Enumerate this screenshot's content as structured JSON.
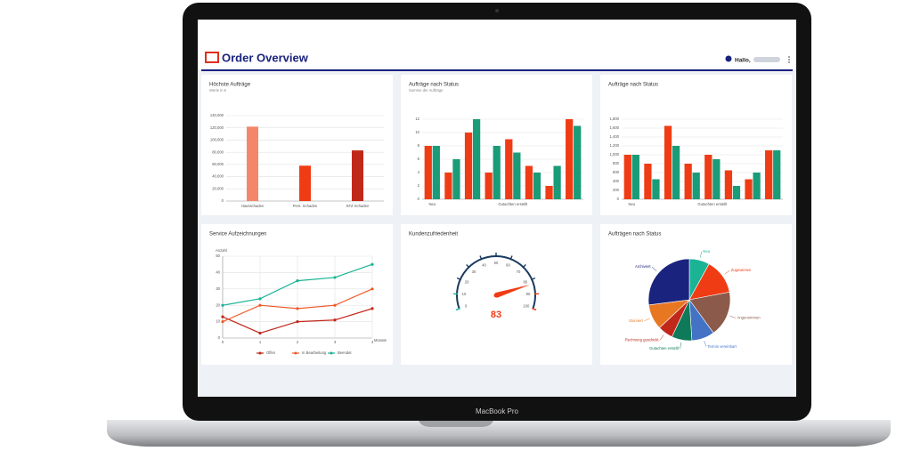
{
  "header": {
    "title": "Order Overview",
    "greeting": "Hallo,"
  },
  "device": {
    "label": "MacBook Pro"
  },
  "chart_data": [
    {
      "type": "bar",
      "title": "Höchste Aufträge",
      "subtitle": "Werte in €",
      "categories": [
        "Hausschaden",
        "Pers. Schaden",
        "KFZ Schaden"
      ],
      "values": [
        122000,
        58000,
        83000
      ],
      "colors": [
        "#f4876a",
        "#f03c14",
        "#c0281a"
      ],
      "ylim": [
        0,
        140000
      ],
      "yticks": [
        0,
        {
          "value": 20000,
          "label": "20,000"
        },
        {
          "value": 40000,
          "label": "40,000"
        },
        {
          "value": 60000,
          "label": "60,000"
        },
        {
          "value": 80000,
          "label": "80,000"
        },
        {
          "value": 100000,
          "label": "100,000"
        },
        {
          "value": 120000,
          "label": "120,000"
        },
        {
          "value": 140000,
          "label": "140,000"
        }
      ],
      "grid": true
    },
    {
      "type": "grouped_bar",
      "title": "Aufträge nach Status",
      "subtitle": "Summe der Aufträge",
      "categories": [
        "Neu",
        null,
        null,
        null,
        "Gutachten erstellt",
        null,
        null,
        null
      ],
      "series": [
        {
          "color": "#f03c14",
          "values": [
            8,
            4,
            10,
            4,
            9,
            5,
            2,
            12
          ]
        },
        {
          "color": "#1a9c78",
          "values": [
            8,
            6,
            12,
            8,
            7,
            4,
            5,
            11
          ]
        }
      ],
      "ylim": [
        0,
        12
      ],
      "yticks": [
        0,
        2,
        4,
        6,
        8,
        10,
        12
      ],
      "grid": true
    },
    {
      "type": "grouped_bar",
      "title": "Aufträge nach Status",
      "categories": [
        "Neu",
        null,
        null,
        null,
        "Gutachten erstellt",
        null,
        null,
        null
      ],
      "series": [
        {
          "color": "#f03c14",
          "values": [
            1000,
            800,
            1650,
            800,
            1000,
            650,
            450,
            1100
          ]
        },
        {
          "color": "#1a9c78",
          "values": [
            1000,
            450,
            1200,
            600,
            900,
            300,
            600,
            1100
          ]
        }
      ],
      "ylim": [
        0,
        1800
      ],
      "yticks": [
        0,
        200,
        400,
        600,
        800,
        {
          "value": 1000,
          "label": "1,000"
        },
        {
          "value": 1200,
          "label": "1,200"
        },
        {
          "value": 1400,
          "label": "1,400"
        },
        {
          "value": 1600,
          "label": "1,600"
        },
        {
          "value": 1800,
          "label": "1,800"
        }
      ],
      "grid": true
    },
    {
      "type": "line",
      "title": "Service Aufzeichnungen",
      "ylabel": "Anzahl",
      "xlabel": "Monate",
      "x": [
        0,
        1,
        2,
        3,
        4
      ],
      "xlim": [
        0,
        4
      ],
      "xticks": [
        0,
        1,
        2,
        3,
        4
      ],
      "series": [
        {
          "name": "Offen",
          "color": "#c0281a",
          "values": [
            13,
            3,
            10,
            11,
            18
          ]
        },
        {
          "name": "In Bearbeitung",
          "color": "#f05a28",
          "values": [
            10,
            20,
            18,
            20,
            30
          ]
        },
        {
          "name": "Beendet",
          "color": "#1ab394",
          "values": [
            20,
            24,
            35,
            37,
            45
          ]
        }
      ],
      "ylim": [
        0,
        50
      ],
      "yticks": [
        0,
        10,
        20,
        30,
        40,
        50
      ],
      "grid": true
    },
    {
      "type": "gauge",
      "title": "Kundenzufriedenheit",
      "value": 83,
      "lim": [
        0,
        100
      ],
      "ticks": [
        0,
        10,
        20,
        30,
        40,
        50,
        60,
        70,
        80,
        90,
        100
      ],
      "color": "#f03c14"
    },
    {
      "type": "pie",
      "title": "Aufträgen nach Status",
      "categories": [
        "Neu",
        "Zugewiesen",
        "Angenommen",
        "Termin vereinbart",
        "Gutachten erstellt",
        "Rechnung geschickt",
        "Storniert",
        "Archiviert"
      ],
      "values": [
        8,
        14,
        18,
        9,
        8,
        6,
        10,
        27
      ],
      "colors": [
        "#1ab394",
        "#f03c14",
        "#8b5a4a",
        "#4472c4",
        "#0e7a5a",
        "#c0281a",
        "#e87722",
        "#1a237e"
      ]
    }
  ]
}
